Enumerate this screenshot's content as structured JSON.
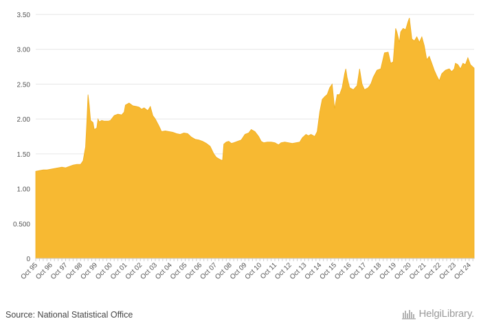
{
  "source": "Source: National Statistical Office",
  "brand": "HelgiLibrary.",
  "chart_data": {
    "type": "area",
    "title": "",
    "xlabel": "",
    "ylabel": "",
    "ylim": [
      0,
      3.5
    ],
    "y_ticks": [
      "0",
      "0.500",
      "1.00",
      "1.50",
      "2.00",
      "2.50",
      "3.00",
      "3.50"
    ],
    "y_tick_values": [
      0,
      0.5,
      1.0,
      1.5,
      2.0,
      2.5,
      3.0,
      3.5
    ],
    "grid": true,
    "legend": "none",
    "color": "#f7b932",
    "x_ticks": [
      "Oct 95",
      "Oct 96",
      "Oct 97",
      "Oct 98",
      "Oct 99",
      "Oct 00",
      "Oct 01",
      "Oct 02",
      "Oct 03",
      "Oct 04",
      "Oct 05",
      "Oct 06",
      "Oct 07",
      "Oct 08",
      "Oct 09",
      "Oct 10",
      "Oct 11",
      "Oct 12",
      "Oct 13",
      "Oct 14",
      "Oct 15",
      "Oct 16",
      "Oct 17",
      "Oct 18",
      "Oct 19",
      "Oct 20",
      "Oct 21",
      "Oct 22",
      "Oct 23",
      "Oct 24"
    ],
    "x_range": [
      "1995-10",
      "2025-02"
    ],
    "series": [
      {
        "values": [
          [
            "1995-10",
            1.25
          ],
          [
            "1996-01",
            1.26
          ],
          [
            "1996-04",
            1.27
          ],
          [
            "1996-07",
            1.27
          ],
          [
            "1996-10",
            1.28
          ],
          [
            "1997-01",
            1.29
          ],
          [
            "1997-04",
            1.3
          ],
          [
            "1997-07",
            1.31
          ],
          [
            "1997-10",
            1.3
          ],
          [
            "1998-01",
            1.32
          ],
          [
            "1998-04",
            1.34
          ],
          [
            "1998-07",
            1.35
          ],
          [
            "1998-10",
            1.35
          ],
          [
            "1998-12",
            1.4
          ],
          [
            "1999-02",
            1.6
          ],
          [
            "1999-03",
            1.95
          ],
          [
            "1999-04",
            2.35
          ],
          [
            "1999-05",
            2.2
          ],
          [
            "1999-06",
            1.98
          ],
          [
            "1999-08",
            1.95
          ],
          [
            "1999-09",
            1.85
          ],
          [
            "1999-11",
            1.87
          ],
          [
            "1999-12",
            2.0
          ],
          [
            "2000-01",
            1.96
          ],
          [
            "2000-03",
            1.98
          ],
          [
            "2000-05",
            1.97
          ],
          [
            "2000-08",
            1.97
          ],
          [
            "2000-10",
            1.98
          ],
          [
            "2001-01",
            2.05
          ],
          [
            "2001-04",
            2.07
          ],
          [
            "2001-07",
            2.06
          ],
          [
            "2001-09",
            2.1
          ],
          [
            "2001-10",
            2.2
          ],
          [
            "2002-01",
            2.23
          ],
          [
            "2002-04",
            2.19
          ],
          [
            "2002-07",
            2.18
          ],
          [
            "2002-09",
            2.17
          ],
          [
            "2002-11",
            2.14
          ],
          [
            "2003-01",
            2.16
          ],
          [
            "2003-04",
            2.12
          ],
          [
            "2003-06",
            2.18
          ],
          [
            "2003-08",
            2.05
          ],
          [
            "2003-10",
            2.0
          ],
          [
            "2004-01",
            1.9
          ],
          [
            "2004-03",
            1.82
          ],
          [
            "2004-06",
            1.83
          ],
          [
            "2004-09",
            1.82
          ],
          [
            "2004-12",
            1.81
          ],
          [
            "2005-03",
            1.79
          ],
          [
            "2005-06",
            1.78
          ],
          [
            "2005-09",
            1.8
          ],
          [
            "2005-12",
            1.79
          ],
          [
            "2006-03",
            1.74
          ],
          [
            "2006-06",
            1.71
          ],
          [
            "2006-09",
            1.7
          ],
          [
            "2006-12",
            1.68
          ],
          [
            "2007-03",
            1.65
          ],
          [
            "2007-06",
            1.61
          ],
          [
            "2007-09",
            1.5
          ],
          [
            "2007-11",
            1.45
          ],
          [
            "2008-01",
            1.43
          ],
          [
            "2008-03",
            1.41
          ],
          [
            "2008-04",
            1.41
          ],
          [
            "2008-05",
            1.64
          ],
          [
            "2008-07",
            1.67
          ],
          [
            "2008-09",
            1.68
          ],
          [
            "2008-11",
            1.65
          ],
          [
            "2009-01",
            1.66
          ],
          [
            "2009-04",
            1.68
          ],
          [
            "2009-07",
            1.7
          ],
          [
            "2009-10",
            1.78
          ],
          [
            "2010-01",
            1.8
          ],
          [
            "2010-03",
            1.85
          ],
          [
            "2010-06",
            1.82
          ],
          [
            "2010-09",
            1.75
          ],
          [
            "2010-11",
            1.68
          ],
          [
            "2011-01",
            1.66
          ],
          [
            "2011-04",
            1.67
          ],
          [
            "2011-07",
            1.67
          ],
          [
            "2011-10",
            1.66
          ],
          [
            "2012-01",
            1.63
          ],
          [
            "2012-03",
            1.66
          ],
          [
            "2012-06",
            1.67
          ],
          [
            "2012-09",
            1.66
          ],
          [
            "2012-12",
            1.65
          ],
          [
            "2013-03",
            1.66
          ],
          [
            "2013-06",
            1.67
          ],
          [
            "2013-08",
            1.73
          ],
          [
            "2013-11",
            1.78
          ],
          [
            "2014-01",
            1.76
          ],
          [
            "2014-03",
            1.78
          ],
          [
            "2014-06",
            1.75
          ],
          [
            "2014-08",
            1.82
          ],
          [
            "2014-10",
            2.1
          ],
          [
            "2014-12",
            2.28
          ],
          [
            "2015-02",
            2.32
          ],
          [
            "2015-04",
            2.35
          ],
          [
            "2015-06",
            2.45
          ],
          [
            "2015-08",
            2.5
          ],
          [
            "2015-10",
            2.15
          ],
          [
            "2015-12",
            2.35
          ],
          [
            "2016-02",
            2.35
          ],
          [
            "2016-04",
            2.45
          ],
          [
            "2016-06",
            2.65
          ],
          [
            "2016-07",
            2.72
          ],
          [
            "2016-08",
            2.6
          ],
          [
            "2016-10",
            2.45
          ],
          [
            "2017-01",
            2.42
          ],
          [
            "2017-04",
            2.48
          ],
          [
            "2017-06",
            2.72
          ],
          [
            "2017-08",
            2.5
          ],
          [
            "2017-10",
            2.42
          ],
          [
            "2018-01",
            2.45
          ],
          [
            "2018-03",
            2.5
          ],
          [
            "2018-05",
            2.6
          ],
          [
            "2018-08",
            2.7
          ],
          [
            "2018-11",
            2.72
          ],
          [
            "2019-02",
            2.95
          ],
          [
            "2019-05",
            2.96
          ],
          [
            "2019-07",
            2.8
          ],
          [
            "2019-09",
            2.82
          ],
          [
            "2019-10",
            3.05
          ],
          [
            "2019-11",
            3.3
          ],
          [
            "2019-12",
            3.25
          ],
          [
            "2020-02",
            3.1
          ],
          [
            "2020-03",
            3.25
          ],
          [
            "2020-05",
            3.3
          ],
          [
            "2020-07",
            3.28
          ],
          [
            "2020-09",
            3.4
          ],
          [
            "2020-10",
            3.45
          ],
          [
            "2020-12",
            3.15
          ],
          [
            "2021-02",
            3.12
          ],
          [
            "2021-04",
            3.18
          ],
          [
            "2021-06",
            3.1
          ],
          [
            "2021-08",
            3.18
          ],
          [
            "2021-10",
            3.05
          ],
          [
            "2021-12",
            2.85
          ],
          [
            "2022-02",
            2.9
          ],
          [
            "2022-04",
            2.8
          ],
          [
            "2022-06",
            2.7
          ],
          [
            "2022-08",
            2.62
          ],
          [
            "2022-10",
            2.55
          ],
          [
            "2022-12",
            2.65
          ],
          [
            "2023-03",
            2.7
          ],
          [
            "2023-06",
            2.72
          ],
          [
            "2023-08",
            2.68
          ],
          [
            "2023-10",
            2.72
          ],
          [
            "2023-11",
            2.8
          ],
          [
            "2024-01",
            2.78
          ],
          [
            "2024-03",
            2.72
          ],
          [
            "2024-05",
            2.8
          ],
          [
            "2024-07",
            2.78
          ],
          [
            "2024-09",
            2.88
          ],
          [
            "2024-11",
            2.78
          ],
          [
            "2025-02",
            2.73
          ]
        ]
      }
    ]
  }
}
